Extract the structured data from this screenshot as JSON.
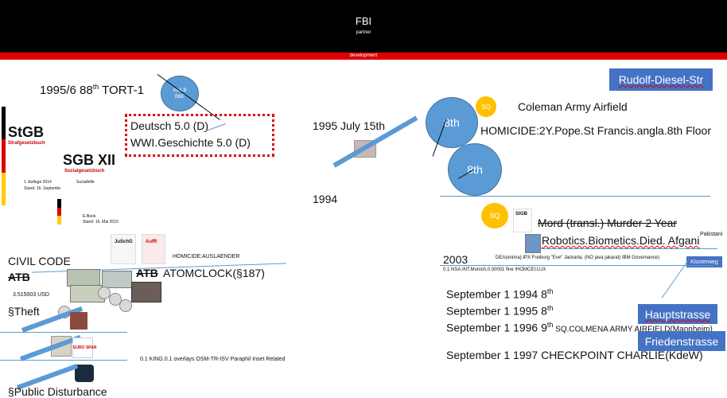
{
  "header": {
    "title": "FBI",
    "subtitle": "partner",
    "band_label": "development"
  },
  "left": {
    "tort": "1995/6  88",
    "tort_sup": "th",
    "tort_rest": " TORT-1",
    "bubble": "Insk.B BBE",
    "german_grade": "Deutsch 5.0 (D)",
    "history_grade": "WWI.Geschichte 5.0 (D)",
    "stgb": {
      "title": "StGB",
      "subtitle": "Strafgesetzbuch",
      "edition": "1. Auflage 2014",
      "date": "Stand: 16. September 2014"
    },
    "sgb": {
      "title": "SGB XII",
      "subtitle": "Sozialgesetzbuch",
      "sub2": "Sozialhilfe",
      "ebook": "E-Book",
      "date": "Stand: 16. Mai 2015"
    },
    "small_books": [
      "JuSchG",
      "AufR"
    ],
    "homicide_small": "HOMICIDE:AUSLAENDER",
    "civil_code": "CIVIL CODE",
    "atb1": "ATB",
    "atb2": "ATB",
    "atomclock": "ATOMCLOCK(§187)",
    "usd": "3.515003 USD",
    "theft": "§Theft",
    "king": "0.1 KING.0.1 overlays OSM-TR-ISV Paraphil Inset Related",
    "public_disturbance": "§Public Disturbance",
    "store_logo": "EURO SPAR"
  },
  "right": {
    "street_top": "Rudolf-Diesel-Str",
    "date_1995": "1995 July 15th",
    "circle_8th_a": "8th",
    "circle_8th_b": "8th",
    "sq_label": "SQ",
    "coleman": "Coleman Army Airfield",
    "homicide_line": "HOMICIDE:2Y.Pope.St Francis.angla.8th Floor",
    "year_1994": "1994",
    "sq2_label": "SQ",
    "stgb_icon": "StGB",
    "mord": "Mord (transl.) Murder 2 Year",
    "robotics": "Robotics.Biometics.Died. Afgani",
    "pakistani": "Pakistani",
    "year_2003": "2003",
    "dea_line": "DEA(enima).IPX Freiburg \"Eve\" Jackarta. (NO java jakarat) IBM Governance)",
    "nsa_line": "0.1 NSA.INT.Munich.0.00001 fine !HOMCEI:LUX",
    "klosterweg": "Klosterweg",
    "sept1994": "September 1 1994 8",
    "sept1994_sup": "th",
    "sept1995": "September 1 1995 8",
    "sept1995_sup": "th",
    "sept1996": "September 1 1996 9",
    "sept1996_sup": "th",
    "sept1996_rest": " SQ.COLMENA ARMY AIRFIELD(Mannheim)",
    "hauptstrasse": "Hauptstrasse",
    "friedenstrasse": "Friedenstrasse",
    "sept1997": "September 1 1997 CHECKPOINT CHARLIE(KdeW)"
  },
  "colors": {
    "header": "#000000",
    "band": "#e00000",
    "accent_blue": "#5b9bd5",
    "box_blue": "#4472c4",
    "sq_yellow": "#ffc000",
    "dotted_border": "#e00000"
  }
}
